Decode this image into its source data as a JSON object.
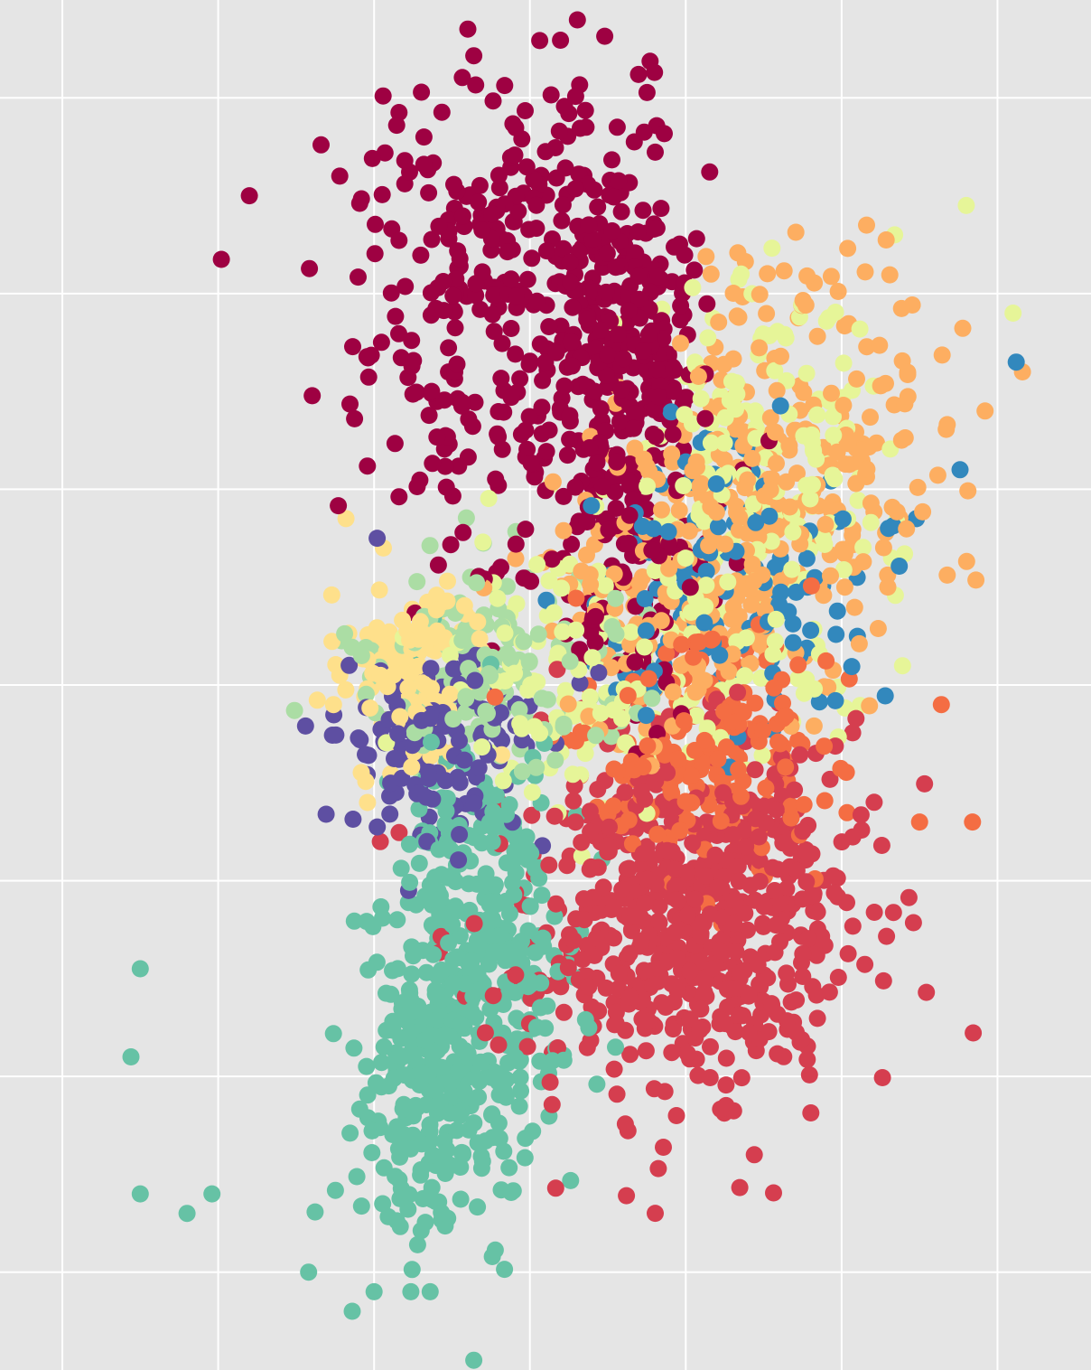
{
  "chart_data": {
    "type": "scatter",
    "title": "",
    "xlabel": "",
    "ylabel": "",
    "xlim": [
      -5.0,
      30.0
    ],
    "ylim": [
      -9.0,
      5.0
    ],
    "x_gridlines": [
      -3.0,
      2.0,
      7.0,
      12.0,
      17.0,
      22.0,
      27.0
    ],
    "y_gridlines": [
      -8.0,
      -6.0,
      -4.0,
      -2.0,
      0.0,
      2.0,
      4.0
    ],
    "grid": true,
    "legend": "none",
    "background_color": "#e5e5e5",
    "grid_color": "#ffffff",
    "series": [
      {
        "color": "#9e0142",
        "clusters": [
          {
            "cx": 10.9,
            "cy": 1.8,
            "sx": 2.3,
            "sy": 1.2,
            "n": 300
          },
          {
            "cx": 14.8,
            "cy": 1.5,
            "sx": 1.2,
            "sy": 1.2,
            "n": 250
          },
          {
            "cx": 15.5,
            "cy": -0.7,
            "sx": 1.5,
            "sy": 0.8,
            "n": 100
          }
        ],
        "points": [
          [
            10.2,
            4.43
          ],
          [
            7.8,
            3.85
          ],
          [
            5.3,
            3.52
          ],
          [
            13.8,
            3.7
          ],
          [
            14.8,
            3.7
          ],
          [
            3.0,
            3.0
          ],
          [
            2.1,
            2.35
          ],
          [
            5.9,
            3.2
          ],
          [
            8.6,
            3.6
          ],
          [
            12.5,
            3.45
          ]
        ]
      },
      {
        "color": "#d53e4f",
        "clusters": [
          {
            "cx": 17.2,
            "cy": -4.4,
            "sx": 2.6,
            "sy": 0.9,
            "n": 650
          }
        ],
        "points": [
          [
            19.2,
            -6.8
          ],
          [
            16.7,
            -6.4
          ],
          [
            7.2,
            -3.6
          ]
        ]
      },
      {
        "color": "#f46d43",
        "clusters": [
          {
            "cx": 17.5,
            "cy": -2.7,
            "sx": 2.2,
            "sy": 0.6,
            "n": 200
          }
        ],
        "points": [
          [
            25.2,
            -2.2
          ],
          [
            26.2,
            -3.4
          ],
          [
            24.5,
            -3.4
          ]
        ]
      },
      {
        "color": "#fdae61",
        "clusters": [
          {
            "cx": 21.0,
            "cy": 0.3,
            "sx": 2.2,
            "sy": 1.2,
            "n": 220
          },
          {
            "cx": 17.0,
            "cy": -0.9,
            "sx": 2.0,
            "sy": 0.8,
            "n": 200
          }
        ],
        "points": [
          [
            27.8,
            1.2
          ],
          [
            22.8,
            2.7
          ],
          [
            26.6,
            0.8
          ],
          [
            19.5,
            0.4
          ]
        ]
      },
      {
        "color": "#fee08b",
        "clusters": [
          {
            "cx": 8.2,
            "cy": -1.9,
            "sx": 1.1,
            "sy": 0.5,
            "n": 140
          }
        ],
        "points": [
          [
            5.7,
            -2.2
          ],
          [
            5.9,
            -1.9
          ],
          [
            6.1,
            -0.3
          ],
          [
            7.3,
            -0.6
          ]
        ]
      },
      {
        "color": "#e6f598",
        "clusters": [
          {
            "cx": 19.3,
            "cy": -0.1,
            "sx": 2.2,
            "sy": 1.1,
            "n": 200
          },
          {
            "cx": 13.5,
            "cy": -1.8,
            "sx": 2.0,
            "sy": 0.7,
            "n": 120
          }
        ],
        "points": [
          [
            26.0,
            2.9
          ],
          [
            27.5,
            1.8
          ],
          [
            23.7,
            2.6
          ]
        ]
      },
      {
        "color": "#abdda4",
        "clusters": [
          {
            "cx": 11.0,
            "cy": -1.9,
            "sx": 2.1,
            "sy": 0.5,
            "n": 160
          }
        ],
        "points": [
          [
            6.6,
            -1.7
          ],
          [
            8.6,
            -1.3
          ]
        ]
      },
      {
        "color": "#66c2a5",
        "clusters": [
          {
            "cx": 10.4,
            "cy": -4.8,
            "sx": 1.4,
            "sy": 1.1,
            "n": 380
          },
          {
            "cx": 8.5,
            "cy": -6.2,
            "sx": 1.0,
            "sy": 0.9,
            "n": 160
          }
        ],
        "points": [
          [
            -0.8,
            -5.8
          ],
          [
            -0.5,
            -7.2
          ],
          [
            1.0,
            -7.4
          ],
          [
            -0.5,
            -4.9
          ],
          [
            6.3,
            -8.4
          ],
          [
            7.0,
            -8.2
          ],
          [
            8.8,
            -8.2
          ],
          [
            10.2,
            -8.9
          ],
          [
            4.9,
            -8.0
          ],
          [
            1.8,
            -7.2
          ]
        ]
      },
      {
        "color": "#3288bd",
        "clusters": [
          {
            "cx": 18.3,
            "cy": -1.1,
            "sx": 2.2,
            "sy": 0.8,
            "n": 130
          }
        ],
        "points": [
          [
            27.6,
            1.3
          ],
          [
            25.8,
            0.2
          ],
          [
            24.4,
            -0.3
          ],
          [
            23.5,
            -0.4
          ],
          [
            22.5,
            -0.9
          ],
          [
            20.9,
            -1.0
          ]
        ]
      },
      {
        "color": "#5e4fa2",
        "clusters": [
          {
            "cx": 9.2,
            "cy": -2.6,
            "sx": 1.6,
            "sy": 0.5,
            "n": 140
          }
        ],
        "points": [
          [
            6.2,
            -1.8
          ],
          [
            7.1,
            -0.5
          ],
          [
            7.7,
            -3.1
          ]
        ]
      }
    ]
  }
}
